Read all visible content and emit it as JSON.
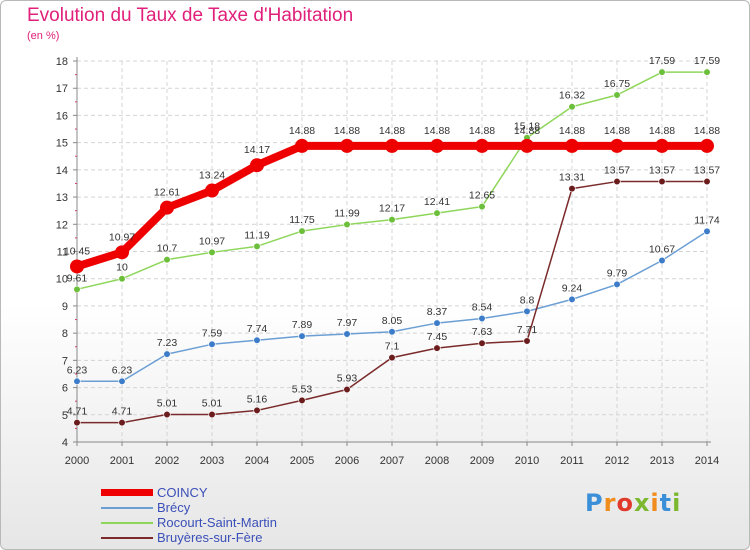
{
  "title": "Evolution du Taux de Taxe d'Habitation",
  "subtitle": "(en %)",
  "logo_text": "Proxiti",
  "logo_colors": [
    "#3a8fd8",
    "#f08c1c",
    "#e03a2a",
    "#7cb82f",
    "#f08c1c",
    "#3a8fd8",
    "#7cb82f"
  ],
  "chart_data": {
    "type": "line",
    "title": "Evolution du Taux de Taxe d'Habitation",
    "ylabel": "(en %)",
    "xlabel": "",
    "x": [
      "2000",
      "2001",
      "2002",
      "2003",
      "2004",
      "2005",
      "2006",
      "2007",
      "2008",
      "2009",
      "2010",
      "2011",
      "2012",
      "2013",
      "2014"
    ],
    "ylim": [
      4,
      18
    ],
    "yticks": [
      "4",
      "5",
      "6",
      "7",
      "8",
      "9",
      "10",
      "11",
      "12",
      "13",
      "14",
      "15",
      "16",
      "17",
      "18"
    ],
    "grid": true,
    "legend_position": "bottom-left",
    "series": [
      {
        "name": "COINCY",
        "color": "#ee0000",
        "emphasis": true,
        "values": [
          10.45,
          10.97,
          12.61,
          13.24,
          14.17,
          14.88,
          14.88,
          14.88,
          14.88,
          14.88,
          14.88,
          14.88,
          14.88,
          14.88,
          14.88
        ],
        "labels": [
          "10.45",
          "10.97",
          "12.61",
          "13.24",
          "14.17",
          "14.88",
          "14.88",
          "14.88",
          "14.88",
          "14.88",
          "14.88",
          "14.88",
          "14.88",
          "14.88",
          "14.88"
        ]
      },
      {
        "name": "Brécy",
        "color": "#6b9fd4",
        "point_color": "#3d7cc9",
        "values": [
          6.23,
          6.23,
          7.23,
          7.59,
          7.74,
          7.89,
          7.97,
          8.05,
          8.37,
          8.54,
          8.8,
          9.24,
          9.79,
          10.67,
          11.74
        ],
        "labels": [
          "6.23",
          "6.23",
          "7.23",
          "7.59",
          "7.74",
          "7.89",
          "7.97",
          "8.05",
          "8.37",
          "8.54",
          "8.8",
          "9.24",
          "9.79",
          "10.67",
          "11.74"
        ]
      },
      {
        "name": "Rocourt-Saint-Martin",
        "color": "#8ed65a",
        "point_color": "#6cbf3a",
        "values": [
          9.61,
          10,
          10.7,
          10.97,
          11.19,
          11.75,
          11.99,
          12.17,
          12.41,
          12.65,
          15.18,
          16.32,
          16.75,
          17.59,
          17.59
        ],
        "labels": [
          "9.61",
          "10",
          "10.7",
          "10.97",
          "11.19",
          "11.75",
          "11.99",
          "12.17",
          "12.41",
          "12.65",
          "15.18",
          "16.32",
          "16.75",
          "17.59",
          "17.59"
        ]
      },
      {
        "name": "Bruyères-sur-Fère",
        "color": "#7a2a2a",
        "point_color": "#6b1c1c",
        "values": [
          4.71,
          4.71,
          5.01,
          5.01,
          5.16,
          5.53,
          5.93,
          7.1,
          7.45,
          7.63,
          7.71,
          13.31,
          13.57,
          13.57,
          13.57
        ],
        "labels": [
          "4.71",
          "4.71",
          "5.01",
          "5.01",
          "5.16",
          "5.53",
          "5.93",
          "7.1",
          "7.45",
          "7.63",
          "7.71",
          "13.31",
          "13.57",
          "13.57",
          "13.57"
        ]
      }
    ]
  }
}
